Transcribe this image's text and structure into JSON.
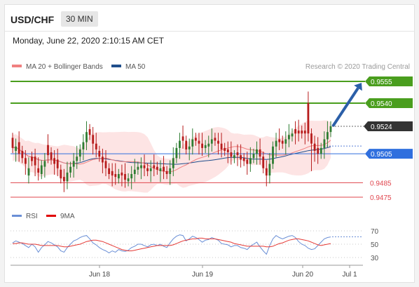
{
  "header": {
    "symbol": "USD/CHF",
    "timeframe": "30 MIN"
  },
  "timestamp": "Monday, June 22, 2020 2:10:15 AM CET",
  "legend": {
    "items": [
      {
        "label": "MA 20 + Bollinger Bands",
        "color": "#f08080"
      },
      {
        "label": "MA 50",
        "color": "#1f4e8c"
      }
    ]
  },
  "credit": "Research © 2020 Trading Central",
  "colors": {
    "up": "#2e7d32",
    "down": "#b71c1c",
    "green_level": "#4a9e1e",
    "blue_level": "#2f6fde",
    "red_level": "#e0464e",
    "current": "#333333",
    "band_fill": "#fde4e4",
    "rsi": "#6a8fd6",
    "rsi_ma": "#e53935"
  },
  "chart_data": [
    {
      "type": "candlestick",
      "x_tick_labels": [
        "Jun 18",
        "Jun 19",
        "Jun 20",
        "Jul 1"
      ],
      "ylim": [
        0.9468,
        0.9562
      ],
      "levels": [
        {
          "value": 0.9555,
          "label": "0.9555",
          "kind": "resistance"
        },
        {
          "value": 0.954,
          "label": "0.9540",
          "kind": "resistance"
        },
        {
          "value": 0.9524,
          "label": "0.9524",
          "kind": "current"
        },
        {
          "value": 0.9505,
          "label": "0.9505",
          "kind": "pivot"
        },
        {
          "value": 0.9485,
          "label": "0.9485",
          "kind": "support"
        },
        {
          "value": 0.9475,
          "label": "0.9475",
          "kind": "support"
        }
      ],
      "close": [
        0.9509,
        0.951,
        0.9505,
        0.9502,
        0.9498,
        0.9495,
        0.95,
        0.9497,
        0.9492,
        0.9497,
        0.95,
        0.9504,
        0.9501,
        0.9498,
        0.9495,
        0.9488,
        0.9486,
        0.9492,
        0.9496,
        0.95,
        0.9503,
        0.9508,
        0.9513,
        0.952,
        0.9518,
        0.9512,
        0.9508,
        0.9503,
        0.9499,
        0.9495,
        0.9491,
        0.949,
        0.9489,
        0.9491,
        0.949,
        0.9487,
        0.9488,
        0.9491,
        0.9494,
        0.9496,
        0.9497,
        0.9495,
        0.9493,
        0.9495,
        0.9495,
        0.9494,
        0.9495,
        0.9493,
        0.9491,
        0.9495,
        0.9502,
        0.9509,
        0.9514,
        0.9514,
        0.9508,
        0.951,
        0.9515,
        0.9514,
        0.9512,
        0.9509,
        0.9511,
        0.9512,
        0.9515,
        0.9514,
        0.9512,
        0.9508,
        0.9507,
        0.9506,
        0.9503,
        0.9504,
        0.9504,
        0.9501,
        0.95,
        0.9498,
        0.9502,
        0.9505,
        0.9508,
        0.9503,
        0.9495,
        0.949,
        0.9498,
        0.951,
        0.9514,
        0.9513,
        0.9512,
        0.9515,
        0.9518,
        0.9519,
        0.9519,
        0.9519,
        0.9519,
        0.9519,
        0.9519,
        0.9512,
        0.9507,
        0.9505,
        0.9509,
        0.9515,
        0.952,
        0.9524
      ],
      "open_close_offset": [
        0.0007,
        -0.0003,
        0.0008,
        0.0005,
        0.0004,
        -0.0005,
        0.0003,
        0.0006,
        0.0003,
        -0.0006,
        -0.0004,
        0.0007,
        0.0005,
        0.0004,
        0.0006,
        0.0006,
        0.0003,
        -0.0006,
        -0.0004,
        -0.0004,
        -0.0003,
        -0.0005,
        -0.0005,
        -0.0007,
        0.0004,
        0.0006,
        0.0004,
        0.0004,
        0.0004,
        0.0005,
        0.0004,
        0.0003,
        0.0002,
        -0.0003,
        0.0002,
        0.0004,
        -0.0002,
        -0.0003,
        -0.0003,
        -0.0002,
        -0.0002,
        0.0002,
        0.0002,
        -0.0002,
        0.0002,
        0.0002,
        -0.0002,
        0.0003,
        0.0002,
        -0.0004,
        -0.0007,
        -0.0007,
        -0.0005,
        0.0003,
        0.0006,
        -0.0002,
        -0.0005,
        0.0002,
        0.0002,
        0.0003,
        -0.0002,
        -0.0002,
        -0.0003,
        0.0002,
        0.0002,
        0.0004,
        0.0002,
        0.0002,
        0.0003,
        -0.0002,
        0.0002,
        0.0003,
        0.0002,
        0.0003,
        -0.0004,
        -0.0003,
        -0.0003,
        0.0005,
        0.0008,
        0.0005,
        -0.0008,
        -0.0012,
        -0.0004,
        0.0002,
        0.0002,
        -0.0003,
        -0.0003,
        -0.0002,
        0.0003,
        0.0002,
        0.0002,
        0.0002,
        0.0021,
        0.0007,
        0.0005,
        0.0004,
        -0.0004,
        -0.0006,
        -0.0005,
        -0.0004
      ],
      "forecast": {
        "from": 0.9524,
        "to": 0.9555
      }
    },
    {
      "type": "line",
      "title": "RSI",
      "series": [
        {
          "name": "RSI"
        },
        {
          "name": "9MA"
        }
      ],
      "y_tick_labels": [
        "70",
        "50",
        "30"
      ],
      "ylim": [
        20,
        80
      ],
      "rsi": [
        52,
        55,
        53,
        51,
        48,
        45,
        50,
        46,
        38,
        45,
        49,
        54,
        52,
        49,
        46,
        40,
        38,
        45,
        50,
        55,
        57,
        60,
        62,
        63,
        58,
        52,
        49,
        45,
        42,
        40,
        37,
        40,
        38,
        42,
        40,
        39,
        41,
        45,
        47,
        50,
        50,
        48,
        46,
        49,
        50,
        48,
        50,
        47,
        45,
        52,
        58,
        62,
        64,
        63,
        55,
        58,
        62,
        60,
        57,
        53,
        56,
        57,
        60,
        58,
        56,
        51,
        50,
        49,
        46,
        48,
        48,
        45,
        44,
        42,
        47,
        50,
        53,
        46,
        40,
        35,
        48,
        58,
        63,
        60,
        58,
        60,
        62,
        63,
        60,
        54,
        50,
        48,
        44,
        42,
        43,
        48,
        53,
        58,
        60,
        61
      ],
      "ma": [
        51,
        51,
        52,
        52,
        51,
        50,
        50,
        50,
        49,
        48,
        48,
        48,
        48,
        48,
        48,
        47,
        46,
        46,
        47,
        48,
        49,
        50,
        52,
        54,
        55,
        56,
        56,
        55,
        54,
        52,
        50,
        48,
        46,
        44,
        42,
        41,
        40,
        40,
        41,
        42,
        43,
        44,
        45,
        46,
        47,
        48,
        48,
        48,
        48,
        48,
        49,
        51,
        53,
        55,
        56,
        57,
        58,
        58,
        59,
        59,
        58,
        58,
        58,
        58,
        57,
        56,
        55,
        54,
        53,
        51,
        50,
        49,
        48,
        47,
        47,
        47,
        47,
        47,
        47,
        46,
        46,
        47,
        49,
        51,
        52,
        54,
        56,
        57,
        58,
        58,
        57,
        56,
        55,
        53,
        51,
        49,
        48,
        49,
        50,
        51
      ]
    }
  ]
}
